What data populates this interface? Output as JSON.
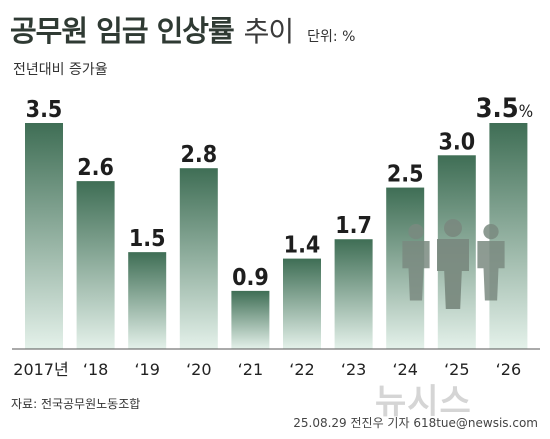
{
  "header": {
    "title": "공무원 임금 인상률",
    "title_suffix": "추이",
    "unit": "단위: %",
    "subtitle": "전년대비 증가율"
  },
  "footer": {
    "source": "자료: 전국공무원노동조합",
    "credit": "25.08.29 전진우 기자 618tue@newsis.com",
    "watermark": "뉴시스"
  },
  "colors": {
    "bar_top": "#3f6e55",
    "bar_bottom": "#e4f1ea",
    "text": "#1e1e1e",
    "figure": "#7a8a80"
  },
  "chart_data": {
    "type": "bar",
    "categories": [
      "2017년",
      "‘18",
      "‘19",
      "‘20",
      "‘21",
      "‘22",
      "‘23",
      "‘24",
      "‘25",
      "‘26"
    ],
    "values": [
      3.5,
      2.6,
      1.5,
      2.8,
      0.9,
      1.4,
      1.7,
      2.5,
      3.0,
      3.5
    ],
    "value_labels": [
      "3.5",
      "2.6",
      "1.5",
      "2.8",
      "0.9",
      "1.4",
      "1.7",
      "2.5",
      "3.0",
      "3.5"
    ],
    "highlight_suffix": "%",
    "ylim": [
      0,
      3.5
    ],
    "grid": false,
    "legend": "none"
  }
}
